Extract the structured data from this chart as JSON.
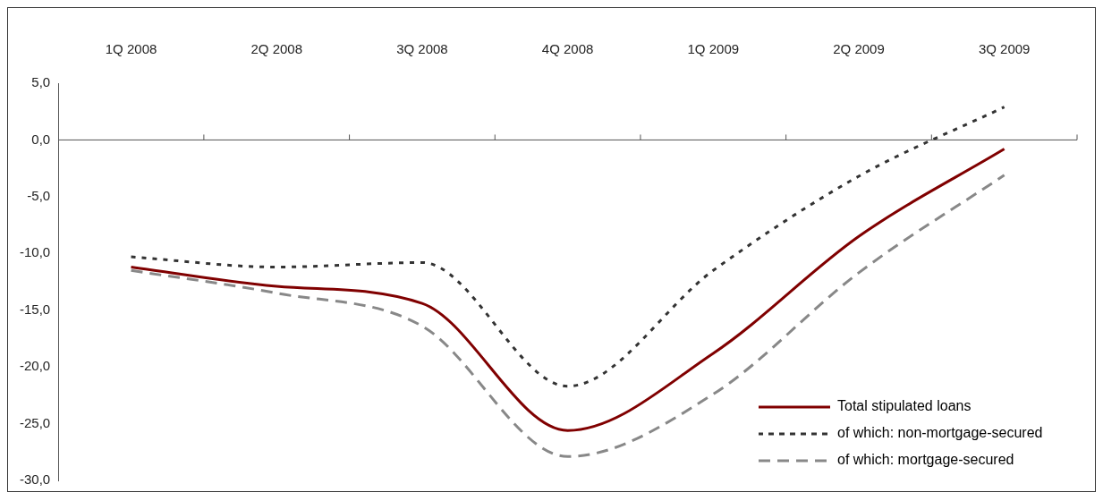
{
  "chart_data": {
    "type": "line",
    "categories": [
      "1Q 2008",
      "2Q 2008",
      "3Q 2008",
      "4Q 2008",
      "1Q 2009",
      "2Q 2009",
      "3Q 2009"
    ],
    "series": [
      {
        "name": "Total stipulated loans",
        "color": "#800000",
        "line_style": "solid",
        "values": [
          -11.2,
          -12.9,
          -14.4,
          -25.6,
          -18.8,
          -8.5,
          -0.8
        ]
      },
      {
        "name": "of which: non-mortgage-secured",
        "color": "#333333",
        "line_style": "dotted",
        "values": [
          -10.3,
          -11.2,
          -10.8,
          -21.7,
          -11.5,
          -3.2,
          2.9
        ]
      },
      {
        "name": "of which: mortgage-secured",
        "color": "#888888",
        "line_style": "dashed",
        "values": [
          -11.5,
          -13.5,
          -16.4,
          -27.9,
          -22.4,
          -11.7,
          -3.1
        ]
      }
    ],
    "ylim": [
      -30,
      5
    ],
    "yticks": [
      {
        "value": 5,
        "label": "5,0"
      },
      {
        "value": 0,
        "label": "0,0"
      },
      {
        "value": -5,
        "label": "-5,0"
      },
      {
        "value": -10,
        "label": "-10,0"
      },
      {
        "value": -15,
        "label": "-15,0"
      },
      {
        "value": -20,
        "label": "-20,0"
      },
      {
        "value": -25,
        "label": "-25,0"
      },
      {
        "value": -30,
        "label": "-30,0"
      }
    ],
    "grid": false,
    "ref_lines": [
      {
        "axis": "y",
        "value": 0,
        "color": "#555555"
      }
    ],
    "legend": "bottom right",
    "marker": "none"
  }
}
